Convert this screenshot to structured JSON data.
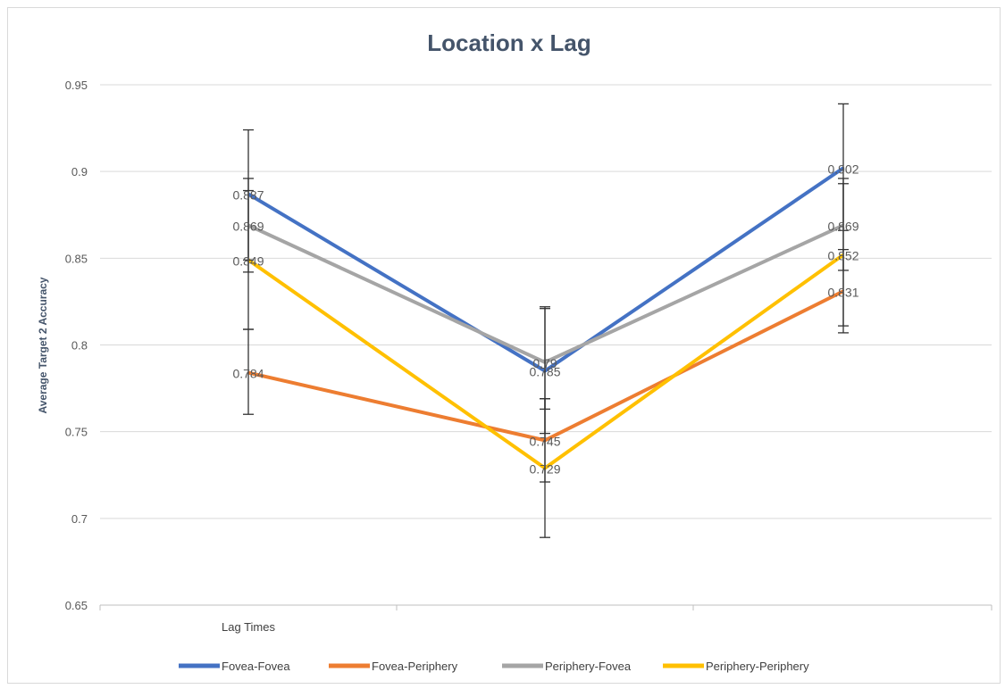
{
  "chart_data": {
    "type": "line",
    "title": "Location x Lag",
    "xlabel": "Lag Times",
    "ylabel": "Average Target 2 Accuracy",
    "ylim": [
      0.65,
      0.95
    ],
    "yticks": [
      "0.95",
      "0.9",
      "0.85",
      "0.8",
      "0.75",
      "0.7",
      "0.65"
    ],
    "categories": [
      "",
      "",
      ""
    ],
    "grid": true,
    "legend_position": "bottom",
    "series": [
      {
        "name": "Fovea-Fovea",
        "color": "#4472c4",
        "values": [
          0.887,
          0.785,
          0.902
        ],
        "labels": [
          "0.887",
          "0.785",
          "0.902"
        ],
        "error_low": [
          0.849,
          0.749,
          0.866
        ],
        "error_high": [
          0.924,
          0.821,
          0.939
        ]
      },
      {
        "name": "Fovea-Periphery",
        "color": "#ed7d31",
        "values": [
          0.784,
          0.745,
          0.831
        ],
        "labels": [
          "0.784",
          "0.745",
          "0.831"
        ],
        "error_low": [
          0.76,
          0.721,
          0.807
        ],
        "error_high": [
          0.809,
          0.769,
          0.855
        ]
      },
      {
        "name": "Periphery-Fovea",
        "color": "#a5a5a5",
        "values": [
          0.869,
          0.79,
          0.869
        ],
        "labels": [
          "0.869",
          "0.79",
          "0.869"
        ],
        "error_low": [
          0.842,
          0.763,
          0.843
        ],
        "error_high": [
          0.896,
          0.822,
          0.896
        ]
      },
      {
        "name": "Periphery-Periphery",
        "color": "#ffc000",
        "values": [
          0.849,
          0.729,
          0.852
        ],
        "labels": [
          "0.849",
          "0.729",
          "0.852"
        ],
        "error_low": [
          0.809,
          0.689,
          0.811
        ],
        "error_high": [
          0.889,
          0.769,
          0.893
        ]
      }
    ]
  }
}
